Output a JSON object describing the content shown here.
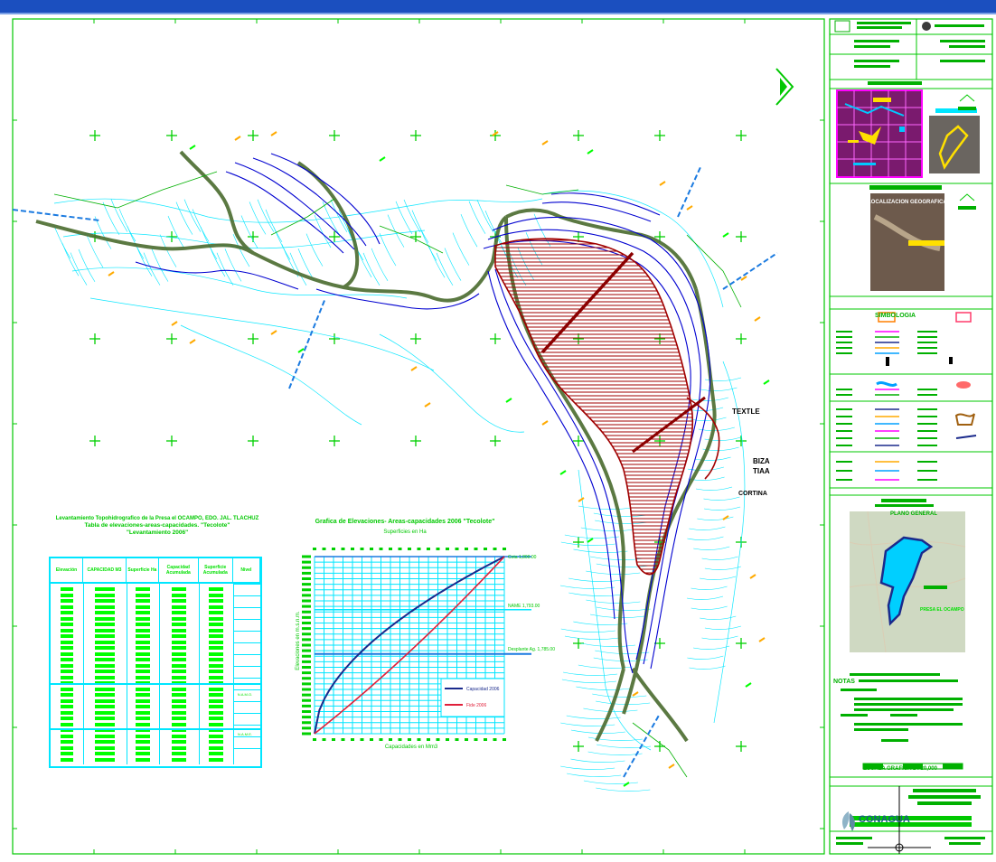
{
  "window": {
    "title_bar_color": "#1b4fbf"
  },
  "colors": {
    "frame": "#00c800",
    "contour_cyan": "#00e6ff",
    "contour_blue": "#0000d0",
    "contour_olive": "#4a6b2e",
    "reservoir_red": "#a00000",
    "grid_cross": "#00d000",
    "table_text": "#00ff00",
    "table_frame": "#00e6ff"
  },
  "map": {
    "north_arrow": "north-arrow",
    "places": [
      "TEXTLE",
      "BIZA",
      "TIAA",
      "CORTINA"
    ]
  },
  "table": {
    "title_lines": [
      "Levantamiento Topohidrografico de la Presa el OCAMPO, EDO. JAL. TLACHUZ",
      "Tabla de elevaciones-areas-capacidades. \"Tecolote\"",
      "\"Levantamiento 2006\""
    ],
    "headers": [
      "Elevación",
      "CAPACIDAD M3",
      "Superficie Ha",
      "Capacidad Acumulada",
      "Superficie Acumulada",
      "Nivel"
    ],
    "right_notes": [
      "N.A.M.O.",
      "N.A.M.E."
    ]
  },
  "chart_data": {
    "type": "line",
    "title": "Grafica de Elevaciones- Areas-capacidades 2006 \"Tecolote\"",
    "xlabel": "Capacidades en Mm3",
    "x2label": "Superficies en Ha",
    "ylabel": "Elevaciones en m.s.n.m.",
    "right_labels": [
      "Cota 1,800.00",
      "NAME 1,793.00",
      "Desplante Ag. 1,785.00"
    ],
    "series": [
      {
        "name": "Capacidad 2006",
        "color": "#1a2a8c"
      },
      {
        "name": "Fide 2006",
        "color": "#e0203a"
      }
    ]
  },
  "legend": {
    "title": "SIMBOLOGIA"
  },
  "location": {
    "title": "LOCALIZACION GEOGRAFICA",
    "map_title": "PLANO GENERAL",
    "reservoir_label": "PRESA EL OCAMPO"
  },
  "notes": {
    "heading": "NOTAS"
  },
  "title_block": {
    "logo_text": "CONAGUA",
    "scale_text": "ESCALA GRAFICA 1 : 20,000"
  }
}
